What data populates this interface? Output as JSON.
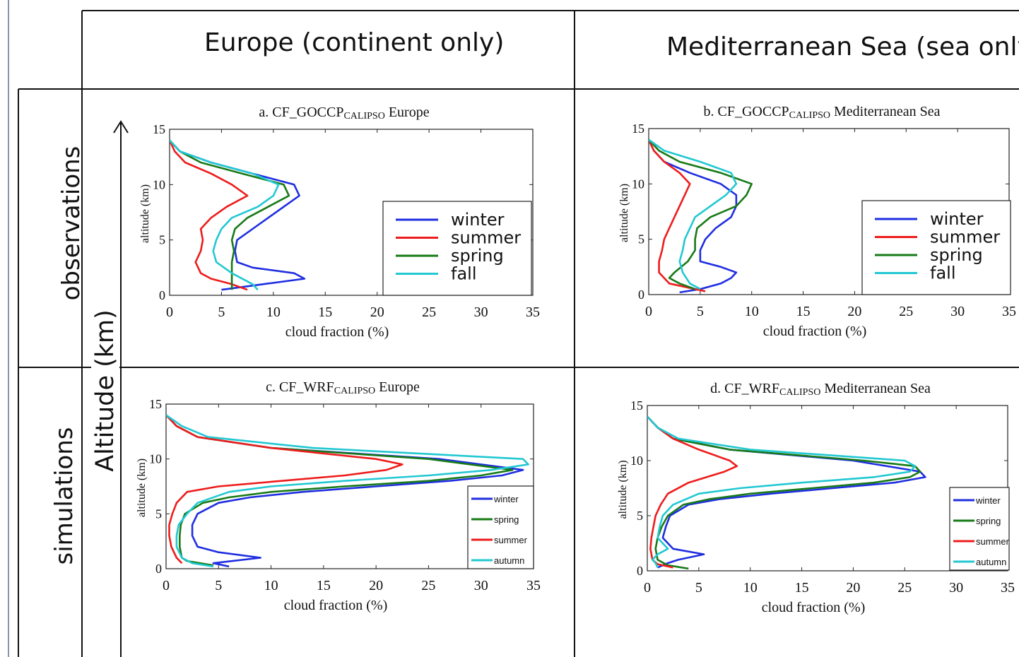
{
  "headers": {
    "col_europe": "Europe (continent only)",
    "col_med": "Mediterranean Sea (sea only)",
    "row_obs": "observations",
    "row_sim": "simulations",
    "axis_altitude": "Altitude (km)"
  },
  "colors": {
    "winter": "#1f2ee0",
    "summer": "#ee1c1c",
    "spring": "#177a17",
    "fall": "#22c8d2",
    "autumn": "#22c8d2"
  },
  "chart_data": [
    {
      "id": "a",
      "type": "line",
      "title_main": "a. CF_GOCCP",
      "title_sub": "CALIPSO",
      "title_tail": " Europe",
      "xlabel": "cloud fraction (%)",
      "ylabel": "altitude (km)",
      "xlim": [
        0,
        35
      ],
      "ylim": [
        0,
        15
      ],
      "xticks": [
        0,
        5,
        10,
        15,
        20,
        25,
        30,
        35
      ],
      "yticks": [
        0,
        5,
        10,
        15
      ],
      "legend_style": "large",
      "legend_position": "right",
      "series": [
        {
          "name": "winter",
          "color_key": "winter",
          "alt": [
            0.5,
            1,
            1.5,
            2,
            2.5,
            3,
            4,
            5,
            6,
            7,
            8,
            9,
            10,
            11,
            12,
            13,
            14
          ],
          "cf": [
            5,
            9,
            13,
            12,
            8,
            6.5,
            6.3,
            6.5,
            8,
            9.5,
            11,
            12.5,
            12,
            8,
            4,
            1,
            0
          ]
        },
        {
          "name": "summer",
          "color_key": "summer",
          "alt": [
            0.5,
            1,
            1.5,
            2,
            3,
            4,
            5,
            6,
            7,
            8,
            9,
            10,
            11,
            12,
            13,
            14
          ],
          "cf": [
            7.5,
            6,
            4,
            3,
            2.5,
            3,
            3.2,
            3,
            4,
            5.5,
            7.5,
            6,
            4,
            1.5,
            0.5,
            0
          ]
        },
        {
          "name": "spring",
          "color_key": "spring",
          "alt": [
            0.5,
            1,
            2,
            3,
            4,
            5,
            6,
            7,
            8,
            9,
            10,
            11,
            12,
            13,
            14
          ],
          "cf": [
            6,
            6,
            6,
            6,
            6.2,
            6,
            6.3,
            7.5,
            9.5,
            11.5,
            11,
            7,
            3,
            1,
            0
          ]
        },
        {
          "name": "fall",
          "color_key": "fall",
          "alt": [
            0.5,
            1,
            2,
            3,
            4,
            5,
            6,
            7,
            8,
            9,
            10,
            11,
            12,
            13,
            14
          ],
          "cf": [
            8.5,
            8,
            6,
            4.5,
            4.2,
            4.5,
            5,
            6,
            8.5,
            10,
            10.5,
            8,
            4,
            1,
            0
          ]
        }
      ]
    },
    {
      "id": "b",
      "type": "line",
      "title_main": "b. CF_GOCCP",
      "title_sub": "CALIPSO",
      "title_tail": " Mediterranean Sea",
      "xlabel": "cloud fraction (%)",
      "ylabel": "altitude (km)",
      "xlim": [
        0,
        35
      ],
      "ylim": [
        0,
        15
      ],
      "xticks": [
        0,
        5,
        10,
        15,
        20,
        25,
        30,
        35
      ],
      "yticks": [
        0,
        5,
        10,
        15
      ],
      "legend_style": "large",
      "legend_position": "right",
      "series": [
        {
          "name": "winter",
          "color_key": "winter",
          "alt": [
            0.2,
            0.5,
            1,
            1.5,
            2,
            2.5,
            3,
            4,
            5,
            6,
            7,
            8,
            9,
            10,
            11,
            12,
            13,
            14
          ],
          "cf": [
            3,
            5,
            7,
            8,
            8.5,
            7,
            5,
            5,
            5.5,
            6.5,
            8,
            8.5,
            8.5,
            7,
            4,
            1.5,
            0.5,
            0
          ]
        },
        {
          "name": "summer",
          "color_key": "summer",
          "alt": [
            0.3,
            1,
            2,
            3,
            4,
            5,
            6,
            7,
            8,
            9,
            10,
            11,
            12,
            13,
            14
          ],
          "cf": [
            5.5,
            2,
            1,
            1,
            1.3,
            1.5,
            2,
            2.5,
            3,
            3.5,
            4,
            3,
            1.5,
            0.5,
            0
          ]
        },
        {
          "name": "spring",
          "color_key": "spring",
          "alt": [
            0.5,
            1,
            1.5,
            2,
            3,
            4,
            5,
            6,
            7,
            8,
            9,
            10,
            11,
            12,
            13,
            14
          ],
          "cf": [
            4.5,
            3,
            2,
            2.5,
            3.8,
            4.5,
            4.5,
            4.7,
            6,
            8.5,
            9.5,
            10,
            7,
            3,
            1,
            0
          ]
        },
        {
          "name": "fall",
          "color_key": "fall",
          "alt": [
            0.5,
            1,
            2,
            3,
            4,
            5,
            6,
            7,
            8,
            9,
            10,
            11,
            12,
            13,
            14
          ],
          "cf": [
            5,
            4,
            3.3,
            3,
            3.3,
            3.5,
            4,
            4.5,
            6,
            7.5,
            8.5,
            8,
            5,
            1.5,
            0
          ]
        }
      ]
    },
    {
      "id": "c",
      "type": "line",
      "title_main": "c. CF_WRF",
      "title_sub": "CALIPSO",
      "title_tail": " Europe",
      "xlabel": "cloud fraction (%)",
      "ylabel": "altitude (km)",
      "xlim": [
        0,
        35
      ],
      "ylim": [
        0,
        15
      ],
      "xticks": [
        0,
        5,
        10,
        15,
        20,
        25,
        30,
        35
      ],
      "yticks": [
        0,
        5,
        10,
        15
      ],
      "legend_style": "small",
      "legend_position": "right",
      "series": [
        {
          "name": "winter",
          "color_key": "winter",
          "alt": [
            0.2,
            0.5,
            1,
            1.5,
            2,
            3,
            4,
            5,
            6,
            6.5,
            7,
            7.5,
            8,
            8.5,
            9,
            10,
            11,
            12,
            13,
            14
          ],
          "cf": [
            6,
            4.5,
            9,
            5,
            3,
            2.5,
            2.5,
            3,
            5,
            8,
            13,
            20,
            27,
            32,
            34,
            26,
            10,
            3,
            1,
            0
          ]
        },
        {
          "name": "spring",
          "color_key": "spring",
          "alt": [
            0.3,
            0.7,
            1,
            2,
            3,
            4,
            5,
            6,
            6.5,
            7,
            7.5,
            8,
            8.5,
            9,
            10,
            11,
            12,
            13,
            14
          ],
          "cf": [
            4.5,
            2,
            1.5,
            1.3,
            1.3,
            1.4,
            1.8,
            3.5,
            6,
            10,
            17,
            25,
            30,
            33,
            25,
            10,
            3,
            1,
            0
          ]
        },
        {
          "name": "summer",
          "color_key": "summer",
          "alt": [
            0.5,
            1,
            2,
            3,
            4,
            5,
            6,
            7,
            7.5,
            8,
            8.5,
            9,
            9.5,
            10,
            11,
            12,
            13,
            14
          ],
          "cf": [
            1.5,
            1,
            0.5,
            0.3,
            0.3,
            0.6,
            1,
            2,
            5,
            11,
            17,
            21,
            22.5,
            20,
            10,
            3,
            1,
            0
          ]
        },
        {
          "name": "autumn",
          "color_key": "autumn",
          "alt": [
            0.2,
            0.5,
            1,
            2,
            3,
            4,
            5,
            6,
            7,
            7.5,
            8,
            8.5,
            9,
            9.5,
            10,
            11,
            12,
            13,
            14
          ],
          "cf": [
            4.5,
            2.5,
            1.5,
            1,
            1,
            1.2,
            2,
            3,
            6,
            10,
            17,
            25,
            31,
            34.5,
            34,
            14,
            4,
            1.5,
            0
          ]
        }
      ]
    },
    {
      "id": "d",
      "type": "line",
      "title_main": "d. CF_WRF",
      "title_sub": "CALIPSO",
      "title_tail": " Mediterranean Sea",
      "xlabel": "cloud fraction (%)",
      "ylabel": "altitude (km)",
      "xlim": [
        0,
        35
      ],
      "ylim": [
        0,
        15
      ],
      "xticks": [
        0,
        5,
        10,
        15,
        20,
        25,
        30,
        35
      ],
      "yticks": [
        0,
        5,
        10,
        15
      ],
      "legend_style": "small",
      "legend_position": "right",
      "series": [
        {
          "name": "winter",
          "color_key": "winter",
          "alt": [
            0.3,
            0.7,
            1,
            1.5,
            2,
            3,
            4,
            5,
            6,
            6.5,
            7,
            7.5,
            8,
            8.5,
            9,
            10,
            11,
            12,
            13,
            14
          ],
          "cf": [
            1,
            2,
            3,
            5.5,
            2.5,
            1.5,
            1.8,
            2.2,
            4,
            7,
            12,
            18,
            24,
            27,
            26.5,
            20,
            8,
            2.5,
            1,
            0
          ]
        },
        {
          "name": "spring",
          "color_key": "spring",
          "alt": [
            0.2,
            0.5,
            1,
            2,
            3,
            4,
            5,
            6,
            6.5,
            7,
            7.5,
            8,
            8.5,
            9,
            9.5,
            10,
            11,
            12,
            13,
            14
          ],
          "cf": [
            4,
            2,
            1,
            0.8,
            1,
            1.4,
            2,
            3.5,
            6,
            10,
            16,
            22,
            25.5,
            26.5,
            26,
            21,
            8,
            2.5,
            1,
            0
          ]
        },
        {
          "name": "summer",
          "color_key": "summer",
          "alt": [
            0.3,
            0.6,
            1,
            2,
            3,
            4,
            5,
            6,
            7,
            8,
            9,
            9.5,
            10,
            11,
            12,
            13,
            14
          ],
          "cf": [
            2.5,
            1,
            0.5,
            0.3,
            0.4,
            0.6,
            0.8,
            1.3,
            2,
            4,
            7.5,
            8.7,
            8,
            5,
            2.5,
            1,
            0
          ]
        },
        {
          "name": "autumn",
          "color_key": "autumn",
          "alt": [
            0.3,
            0.7,
            1,
            1.5,
            2,
            3,
            4,
            5,
            6,
            7,
            7.5,
            8,
            8.5,
            9,
            9.5,
            10,
            11,
            12,
            13,
            14
          ],
          "cf": [
            1,
            0.8,
            0.5,
            1,
            2,
            1,
            1.2,
            1.5,
            2.5,
            5,
            9,
            15,
            22,
            25.5,
            26,
            25,
            10,
            3,
            1,
            0
          ]
        }
      ]
    }
  ]
}
